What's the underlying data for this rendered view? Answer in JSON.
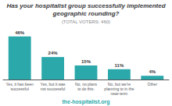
{
  "chart_data": {
    "type": "bar",
    "title": "Has your hospitalist group successfully implemented\ngeographic rounding?",
    "subtitle": "(TOTAL VOTERS: 460)",
    "categories": [
      "Yes, it has been\nsuccessful",
      "Yes, but it was\nnot successful",
      "No, no plans\nto do this.",
      "No, but we're\nplanning to in the\nnear-term",
      "Other"
    ],
    "values": [
      46,
      24,
      15,
      11,
      4
    ],
    "value_labels": [
      "46%",
      "24%",
      "15%",
      "11%",
      "4%"
    ],
    "data_labels": true,
    "color": "#2aa8aa",
    "ylim": [
      0,
      55
    ],
    "grid": false,
    "tick_labels": "x",
    "annotations": [
      "the-hospitalist.org"
    ]
  }
}
